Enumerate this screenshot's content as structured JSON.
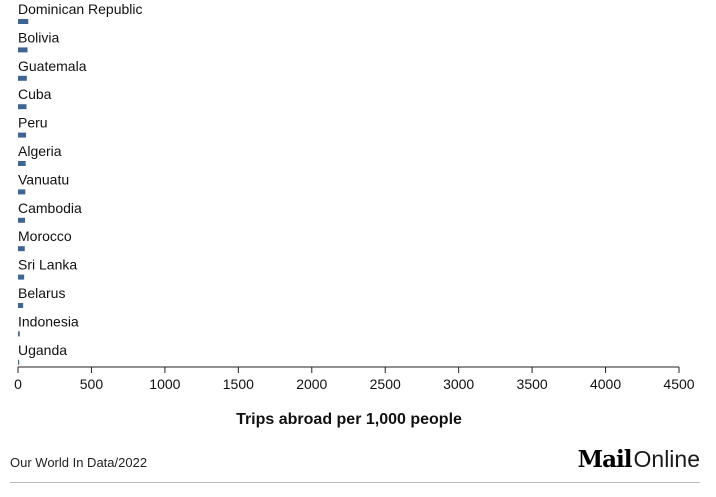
{
  "chart_data": {
    "type": "bar",
    "orientation": "horizontal",
    "categories": [
      "Dominican Republic",
      "Bolivia",
      "Guatemala",
      "Cuba",
      "Peru",
      "Algeria",
      "Vanuatu",
      "Cambodia",
      "Morocco",
      "Sri Lanka",
      "Belarus",
      "Indonesia",
      "Uganda"
    ],
    "values": [
      70,
      65,
      60,
      58,
      55,
      52,
      50,
      48,
      46,
      42,
      35,
      12,
      8
    ],
    "xlabel": "Trips abroad per 1,000 people",
    "ylabel": "",
    "xlim": [
      0,
      4500
    ],
    "xticks": [
      0,
      500,
      1000,
      1500,
      2000,
      2500,
      3000,
      3500,
      4000,
      4500
    ],
    "bar_color": "#3f6593",
    "grid": false,
    "legend": "none"
  },
  "footer": {
    "source": "Our World In Data/2022",
    "brand_mail": "Mail",
    "brand_online": "Online"
  }
}
